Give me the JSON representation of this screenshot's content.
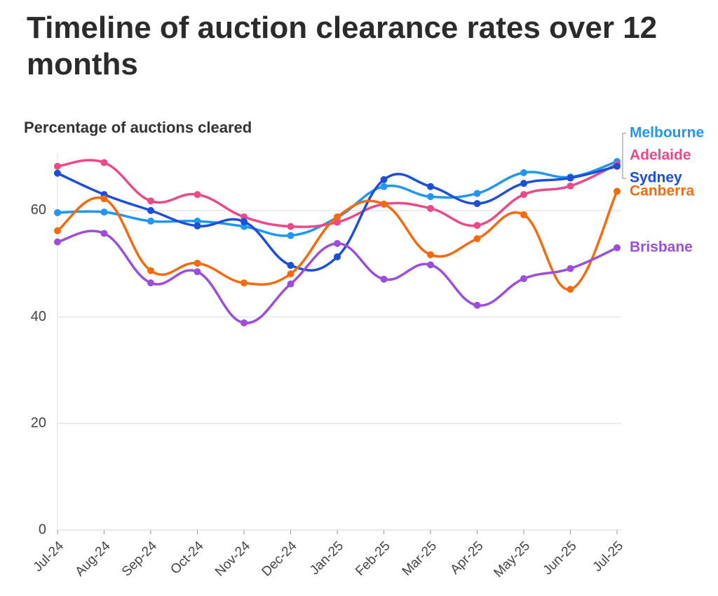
{
  "chart_data": {
    "type": "line",
    "title": "Timeline of auction clearance rates over 12 months",
    "subtitle": "Percentage of auctions cleared",
    "categories": [
      "Jul-24",
      "Aug-24",
      "Sep-24",
      "Oct-24",
      "Nov-24",
      "Dec-24",
      "Jan-25",
      "Feb-25",
      "Mar-25",
      "Apr-25",
      "May-25",
      "Jun-25",
      "Jul-25"
    ],
    "ylim": [
      0,
      70
    ],
    "yticks": [
      0,
      20,
      40,
      60
    ],
    "grid": true,
    "series": [
      {
        "name": "Melbourne",
        "color": "#2196f3",
        "values": [
          59.6,
          59.7,
          58.0,
          58.0,
          57.0,
          55.3,
          58.7,
          64.5,
          62.6,
          63.2,
          67.1,
          66.3,
          69.2
        ]
      },
      {
        "name": "Adelaide",
        "color": "#e84a8a",
        "values": [
          68.3,
          69.0,
          61.8,
          63.0,
          58.8,
          57.0,
          57.8,
          61.2,
          60.4,
          57.2,
          63.0,
          64.6,
          68.7
        ]
      },
      {
        "name": "Sydney",
        "color": "#1a4fd6",
        "values": [
          67.0,
          63.0,
          60.0,
          57.1,
          57.9,
          49.7,
          51.3,
          65.8,
          64.5,
          61.3,
          65.1,
          66.1,
          68.3
        ]
      },
      {
        "name": "Canberra",
        "color": "#f26b0f",
        "values": [
          56.2,
          62.2,
          48.7,
          50.1,
          46.4,
          48.1,
          58.8,
          61.2,
          51.7,
          54.7,
          59.2,
          45.2,
          63.6
        ]
      },
      {
        "name": "Brisbane",
        "color": "#9b4fd9",
        "values": [
          54.1,
          55.7,
          46.4,
          48.5,
          38.9,
          46.2,
          53.8,
          47.1,
          49.8,
          42.2,
          47.2,
          49.1,
          53.0
        ]
      }
    ]
  }
}
